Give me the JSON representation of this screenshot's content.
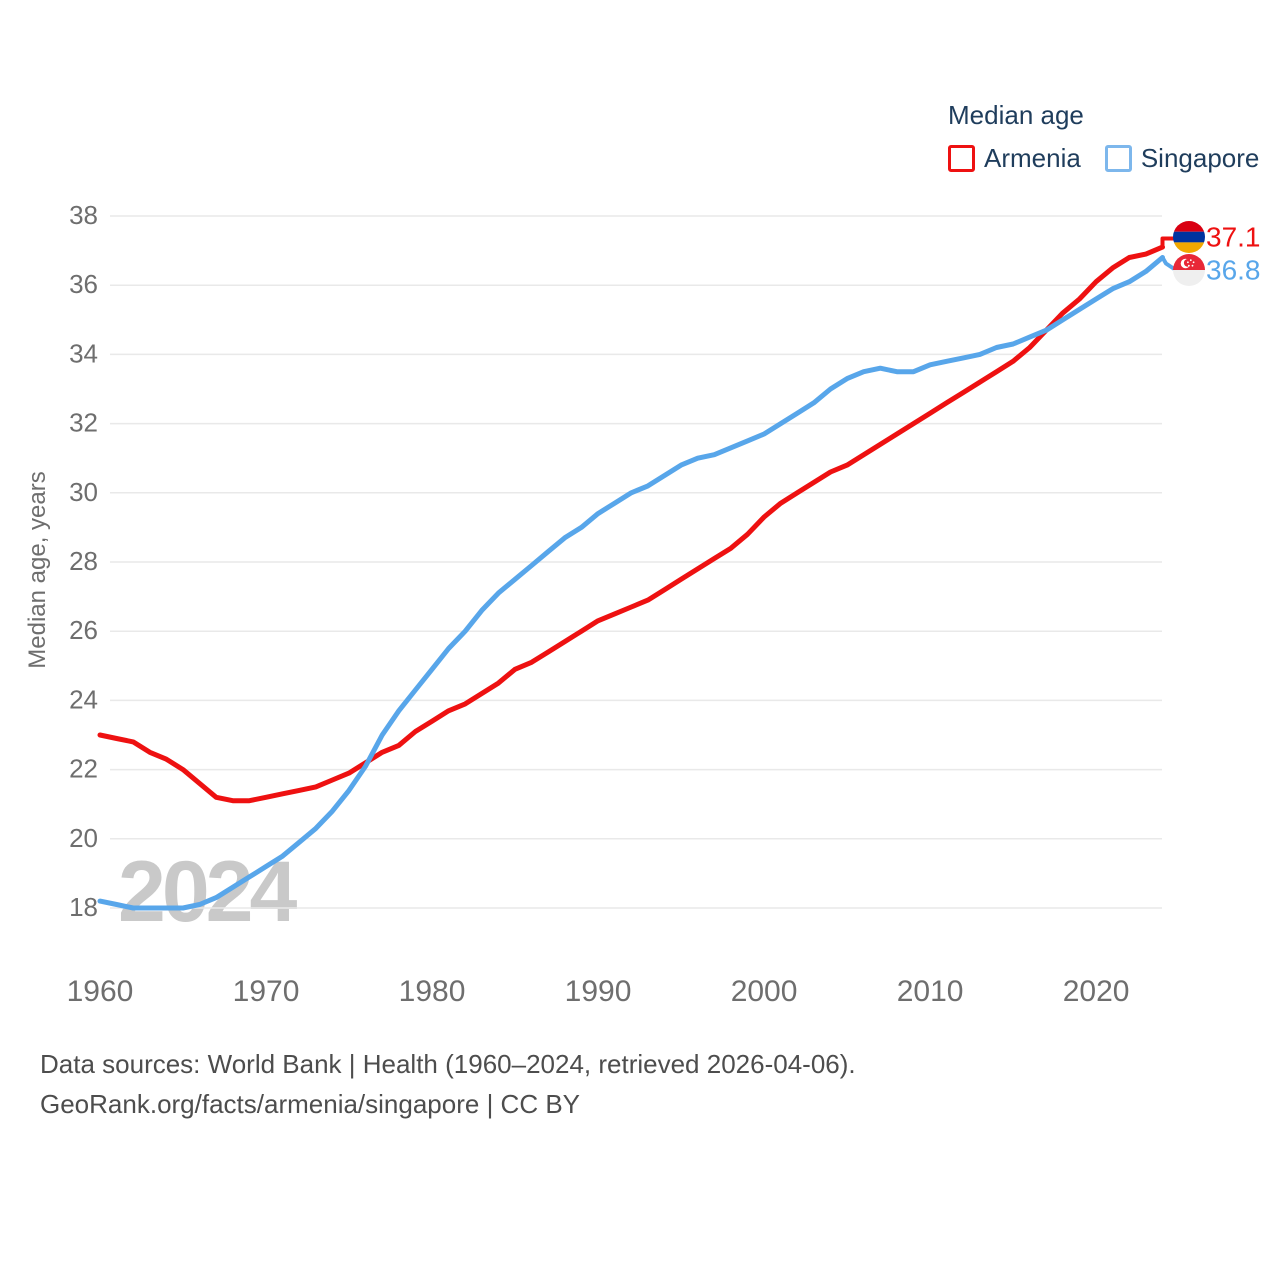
{
  "legend": {
    "title": "Median age",
    "swatch_colors": [
      "#ee1111",
      "#7db7ec"
    ]
  },
  "watermark": "2024",
  "footer": {
    "line1": "Data sources: World Bank | Health (1960–2024, retrieved 2026-04-06).",
    "line2": "GeoRank.org/facts/armenia/singapore | CC BY"
  },
  "chart_data": {
    "type": "line",
    "title": "Median age",
    "ylabel": "Median age, years",
    "xlim": [
      1960,
      2024
    ],
    "ylim": [
      18,
      38
    ],
    "x_ticks": [
      1960,
      1970,
      1980,
      1990,
      2000,
      2010,
      2020
    ],
    "y_ticks": [
      18,
      20,
      22,
      24,
      26,
      28,
      30,
      32,
      34,
      36,
      38
    ],
    "grid": "horizontal",
    "legend_position": "top-right",
    "x": [
      1960,
      1961,
      1962,
      1963,
      1964,
      1965,
      1966,
      1967,
      1968,
      1969,
      1970,
      1971,
      1972,
      1973,
      1974,
      1975,
      1976,
      1977,
      1978,
      1979,
      1980,
      1981,
      1982,
      1983,
      1984,
      1985,
      1986,
      1987,
      1988,
      1989,
      1990,
      1991,
      1992,
      1993,
      1994,
      1995,
      1996,
      1997,
      1998,
      1999,
      2000,
      2001,
      2002,
      2003,
      2004,
      2005,
      2006,
      2007,
      2008,
      2009,
      2010,
      2011,
      2012,
      2013,
      2014,
      2015,
      2016,
      2017,
      2018,
      2019,
      2020,
      2021,
      2022,
      2023,
      2024
    ],
    "series": [
      {
        "name": "Armenia",
        "color": "#ee1111",
        "end_label": "37.1",
        "values": [
          23.0,
          22.9,
          22.8,
          22.5,
          22.3,
          22.0,
          21.6,
          21.2,
          21.1,
          21.1,
          21.2,
          21.3,
          21.4,
          21.5,
          21.7,
          21.9,
          22.2,
          22.5,
          22.7,
          23.1,
          23.4,
          23.7,
          23.9,
          24.2,
          24.5,
          24.9,
          25.1,
          25.4,
          25.7,
          26.0,
          26.3,
          26.5,
          26.7,
          26.9,
          27.2,
          27.5,
          27.8,
          28.1,
          28.4,
          28.8,
          29.3,
          29.7,
          30.0,
          30.3,
          30.6,
          30.8,
          31.1,
          31.4,
          31.7,
          32.0,
          32.3,
          32.6,
          32.9,
          33.2,
          33.5,
          33.8,
          34.2,
          34.7,
          35.2,
          35.6,
          36.1,
          36.5,
          36.8,
          36.9,
          37.1
        ]
      },
      {
        "name": "Singapore",
        "color": "#58a6ea",
        "end_label": "36.8",
        "values": [
          18.2,
          18.1,
          18.0,
          18.0,
          18.0,
          18.0,
          18.1,
          18.3,
          18.6,
          18.9,
          19.2,
          19.5,
          19.9,
          20.3,
          20.8,
          21.4,
          22.1,
          23.0,
          23.7,
          24.3,
          24.9,
          25.5,
          26.0,
          26.6,
          27.1,
          27.5,
          27.9,
          28.3,
          28.7,
          29.0,
          29.4,
          29.7,
          30.0,
          30.2,
          30.5,
          30.8,
          31.0,
          31.1,
          31.3,
          31.5,
          31.7,
          32.0,
          32.3,
          32.6,
          33.0,
          33.3,
          33.5,
          33.6,
          33.5,
          33.5,
          33.7,
          33.8,
          33.9,
          34.0,
          34.2,
          34.3,
          34.5,
          34.7,
          35.0,
          35.3,
          35.6,
          35.9,
          36.1,
          36.4,
          36.8
        ]
      }
    ]
  }
}
